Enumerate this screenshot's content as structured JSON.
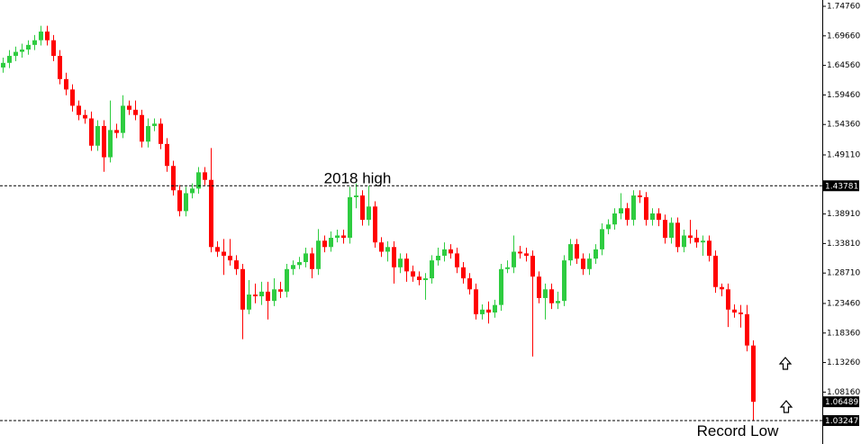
{
  "chart_data": {
    "type": "candlestick",
    "up_color": "#2ecc40",
    "down_color": "#ff0000",
    "ylim": [
      0.992,
      1.7585
    ],
    "yticks": [
      {
        "value": 1.7476,
        "label": "1.74760"
      },
      {
        "value": 1.6966,
        "label": "1.69660"
      },
      {
        "value": 1.6456,
        "label": "1.64560"
      },
      {
        "value": 1.5946,
        "label": "1.59460"
      },
      {
        "value": 1.5436,
        "label": "1.54360"
      },
      {
        "value": 1.4911,
        "label": "1.49110"
      },
      {
        "value": 1.3891,
        "label": "1.38910"
      },
      {
        "value": 1.3381,
        "label": "1.33810"
      },
      {
        "value": 1.2871,
        "label": "1.28710"
      },
      {
        "value": 1.2346,
        "label": "1.23460"
      },
      {
        "value": 1.1836,
        "label": "1.18360"
      },
      {
        "value": 1.1326,
        "label": "1.13260"
      },
      {
        "value": 1.0816,
        "label": "1.08160"
      }
    ],
    "price_lines": [
      {
        "value": 1.43781,
        "label": "1.43781",
        "text": "2018 high"
      },
      {
        "value": 1.03247,
        "label": "1.03247",
        "text": "Record Low"
      }
    ],
    "current_price": {
      "value": 1.06489,
      "label": "1.06489"
    },
    "open": [
      1.642,
      1.65,
      1.662,
      1.669,
      1.673,
      1.681,
      1.689,
      1.704,
      1.689,
      1.662,
      1.622,
      1.604,
      1.576,
      1.56,
      1.554,
      1.507,
      1.541,
      1.487,
      1.534,
      1.529,
      1.576,
      1.569,
      1.56,
      1.514,
      1.541,
      1.545,
      1.51,
      1.472,
      1.43,
      1.394,
      1.425,
      1.433,
      1.461,
      1.448,
      1.332,
      1.324,
      1.317,
      1.309,
      1.294,
      1.224,
      1.25,
      1.247,
      1.255,
      1.239,
      1.259,
      1.255,
      1.294,
      1.301,
      1.306,
      1.321,
      1.294,
      1.343,
      1.332,
      1.348,
      1.352,
      1.348,
      1.418,
      1.421,
      1.379,
      1.402,
      1.34,
      1.324,
      1.332,
      1.297,
      1.312,
      1.29,
      1.281,
      1.275,
      1.278,
      1.309,
      1.317,
      1.328,
      1.321,
      1.297,
      1.278,
      1.259,
      1.216,
      1.224,
      1.219,
      1.232,
      1.294,
      1.297,
      1.324,
      1.321,
      1.317,
      1.281,
      1.244,
      1.259,
      1.235,
      1.239,
      1.309,
      1.337,
      1.312,
      1.294,
      1.312,
      1.328,
      1.363,
      1.371,
      1.39,
      1.399,
      1.379,
      1.421,
      1.418,
      1.379,
      1.39,
      1.379,
      1.348,
      1.374,
      1.332,
      1.352,
      1.348,
      1.34,
      1.343,
      1.317,
      1.263,
      1.259,
      1.224,
      1.219,
      1.216,
      1.162
    ],
    "high": [
      1.659,
      1.672,
      1.678,
      1.683,
      1.689,
      1.698,
      1.714,
      1.714,
      1.698,
      1.672,
      1.633,
      1.613,
      1.585,
      1.569,
      1.566,
      1.551,
      1.551,
      1.585,
      1.545,
      1.594,
      1.585,
      1.585,
      1.569,
      1.554,
      1.554,
      1.554,
      1.52,
      1.481,
      1.439,
      1.436,
      1.442,
      1.47,
      1.47,
      1.503,
      1.342,
      1.346,
      1.346,
      1.318,
      1.303,
      1.275,
      1.269,
      1.272,
      1.272,
      1.278,
      1.272,
      1.303,
      1.309,
      1.315,
      1.331,
      1.331,
      1.363,
      1.352,
      1.359,
      1.362,
      1.362,
      1.436,
      1.442,
      1.43,
      1.438,
      1.411,
      1.349,
      1.342,
      1.342,
      1.321,
      1.321,
      1.3,
      1.29,
      1.287,
      1.318,
      1.331,
      1.34,
      1.337,
      1.331,
      1.306,
      1.287,
      1.269,
      1.233,
      1.238,
      1.241,
      1.303,
      1.309,
      1.352,
      1.334,
      1.331,
      1.326,
      1.29,
      1.269,
      1.269,
      1.255,
      1.318,
      1.346,
      1.346,
      1.321,
      1.321,
      1.337,
      1.373,
      1.38,
      1.399,
      1.425,
      1.408,
      1.43,
      1.43,
      1.427,
      1.399,
      1.399,
      1.388,
      1.383,
      1.383,
      1.362,
      1.379,
      1.362,
      1.352,
      1.352,
      1.326,
      1.269,
      1.269,
      1.233,
      1.232,
      1.232,
      1.171
    ],
    "low": [
      1.633,
      1.641,
      1.653,
      1.659,
      1.664,
      1.672,
      1.68,
      1.68,
      1.653,
      1.613,
      1.594,
      1.566,
      1.551,
      1.545,
      1.498,
      1.498,
      1.462,
      1.478,
      1.52,
      1.52,
      1.56,
      1.551,
      1.504,
      1.504,
      1.532,
      1.501,
      1.462,
      1.421,
      1.385,
      1.385,
      1.416,
      1.424,
      1.439,
      1.323,
      1.315,
      1.284,
      1.3,
      1.284,
      1.173,
      1.216,
      1.235,
      1.232,
      1.207,
      1.23,
      1.244,
      1.245,
      1.284,
      1.294,
      1.297,
      1.278,
      1.284,
      1.323,
      1.324,
      1.34,
      1.338,
      1.338,
      1.399,
      1.369,
      1.369,
      1.331,
      1.315,
      1.307,
      1.269,
      1.287,
      1.272,
      1.272,
      1.266,
      1.241,
      1.269,
      1.3,
      1.307,
      1.312,
      1.287,
      1.269,
      1.25,
      1.207,
      1.207,
      1.2,
      1.21,
      1.222,
      1.287,
      1.287,
      1.312,
      1.307,
      1.143,
      1.235,
      1.207,
      1.225,
      1.225,
      1.23,
      1.3,
      1.303,
      1.284,
      1.284,
      1.303,
      1.318,
      1.354,
      1.362,
      1.38,
      1.369,
      1.369,
      1.408,
      1.369,
      1.369,
      1.368,
      1.338,
      1.338,
      1.323,
      1.323,
      1.338,
      1.331,
      1.317,
      1.307,
      1.253,
      1.247,
      1.194,
      1.21,
      1.193,
      1.152,
      1.0325
    ],
    "close": [
      1.65,
      1.662,
      1.669,
      1.673,
      1.681,
      1.689,
      1.704,
      1.689,
      1.662,
      1.622,
      1.604,
      1.576,
      1.56,
      1.554,
      1.507,
      1.541,
      1.487,
      1.534,
      1.529,
      1.576,
      1.569,
      1.56,
      1.514,
      1.541,
      1.545,
      1.51,
      1.472,
      1.43,
      1.394,
      1.425,
      1.433,
      1.461,
      1.448,
      1.332,
      1.324,
      1.317,
      1.309,
      1.294,
      1.224,
      1.25,
      1.247,
      1.255,
      1.239,
      1.259,
      1.255,
      1.294,
      1.301,
      1.306,
      1.321,
      1.294,
      1.343,
      1.332,
      1.348,
      1.352,
      1.348,
      1.418,
      1.421,
      1.379,
      1.402,
      1.34,
      1.324,
      1.332,
      1.297,
      1.312,
      1.29,
      1.281,
      1.275,
      1.278,
      1.309,
      1.317,
      1.328,
      1.321,
      1.297,
      1.278,
      1.259,
      1.216,
      1.224,
      1.219,
      1.232,
      1.294,
      1.297,
      1.324,
      1.321,
      1.317,
      1.281,
      1.244,
      1.259,
      1.235,
      1.239,
      1.309,
      1.337,
      1.312,
      1.294,
      1.312,
      1.328,
      1.363,
      1.371,
      1.39,
      1.399,
      1.379,
      1.421,
      1.418,
      1.379,
      1.39,
      1.379,
      1.348,
      1.374,
      1.332,
      1.352,
      1.348,
      1.34,
      1.343,
      1.317,
      1.263,
      1.259,
      1.224,
      1.219,
      1.216,
      1.162,
      1.0649
    ]
  }
}
